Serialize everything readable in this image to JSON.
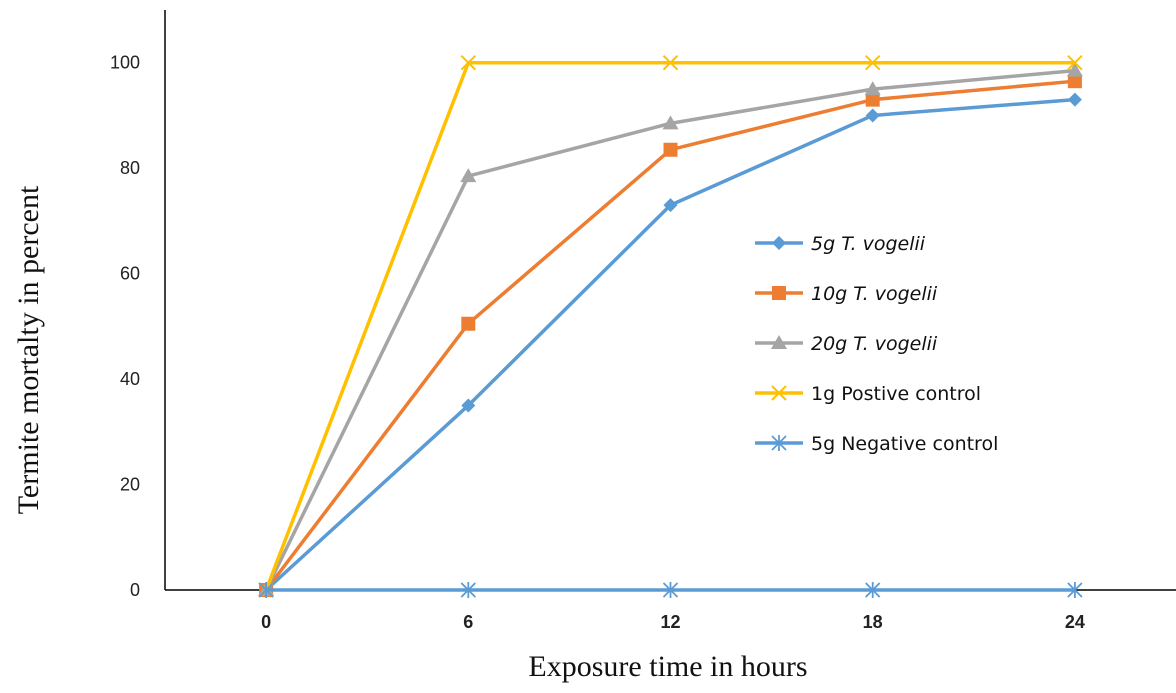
{
  "chart_data": {
    "type": "line",
    "xlabel": "Exposure time in hours",
    "ylabel": "Termite mortalty in percent",
    "x": [
      0,
      6,
      12,
      18,
      24
    ],
    "xlim": [
      -3,
      27
    ],
    "ylim": [
      0,
      110
    ],
    "yticks": [
      0,
      20,
      40,
      60,
      80,
      100
    ],
    "grid": false,
    "legend_position": "center-right",
    "series": [
      {
        "name": "5g T. vogelii",
        "values": [
          0,
          35,
          73,
          90,
          93
        ],
        "color": "#5b9bd5",
        "marker": "diamond",
        "italic": true
      },
      {
        "name": "10g T. vogelii",
        "values": [
          0,
          50.5,
          83.5,
          93,
          96.5
        ],
        "color": "#ed7d31",
        "marker": "square",
        "italic": true
      },
      {
        "name": "20g T. vogelii",
        "values": [
          0,
          78.5,
          88.5,
          95,
          98.5
        ],
        "color": "#a5a5a5",
        "marker": "triangle",
        "italic": true
      },
      {
        "name": "1g Postive control",
        "values": [
          0,
          100,
          100,
          100,
          100
        ],
        "color": "#ffc000",
        "marker": "x",
        "italic": false
      },
      {
        "name": "5g Negative control",
        "values": [
          0,
          0,
          0,
          0,
          0
        ],
        "color": "#5b9bd5",
        "marker": "star",
        "italic": false
      }
    ]
  }
}
